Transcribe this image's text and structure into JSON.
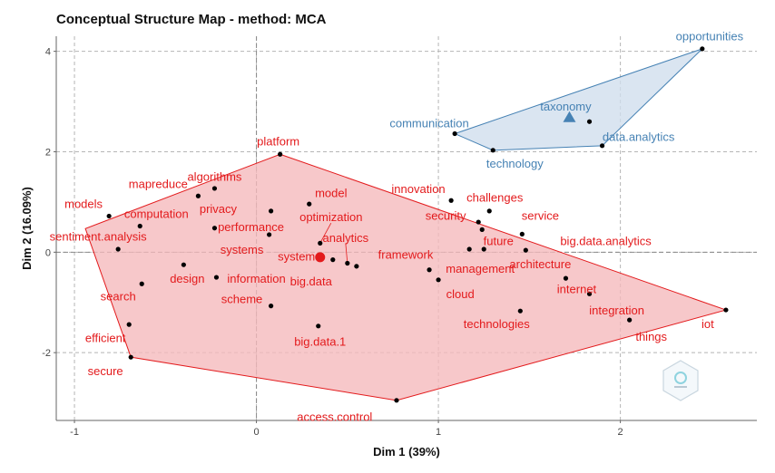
{
  "chart_data": {
    "type": "scatter",
    "title": "Conceptual Structure Map - method: MCA",
    "xlabel": "Dim 1 (39%)",
    "ylabel": "Dim 2 (16.09%)",
    "xlim": [
      -1.1,
      2.75
    ],
    "ylim": [
      -3.35,
      4.3
    ],
    "xticks": [
      -1,
      0,
      1,
      2
    ],
    "yticks": [
      -2,
      0,
      2,
      4
    ],
    "grid": true,
    "clusters": [
      {
        "color": "#e31a1c",
        "fill": "#f5b8bb",
        "hull": [
          [
            0.13,
            1.95
          ],
          [
            2.58,
            -1.15
          ],
          [
            0.77,
            -2.95
          ],
          [
            -0.69,
            -2.09
          ],
          [
            -0.94,
            0.47
          ]
        ],
        "centroid": [
          0.35,
          -0.1
        ],
        "points": [
          {
            "term": "platform",
            "x": 0.13,
            "y": 1.95
          },
          {
            "term": "algorithms",
            "x": -0.23,
            "y": 1.27
          },
          {
            "term": "mapreduce",
            "x": -0.32,
            "y": 1.12
          },
          {
            "term": "models",
            "x": -0.81,
            "y": 0.72
          },
          {
            "term": "computation",
            "x": -0.64,
            "y": 0.52
          },
          {
            "term": "privacy",
            "x": -0.23,
            "y": 0.48
          },
          {
            "term": "performance",
            "x": 0.08,
            "y": 0.82
          },
          {
            "term": "model",
            "x": 0.29,
            "y": 0.96
          },
          {
            "term": "optimization",
            "x": 0.35,
            "y": 0.18
          },
          {
            "term": "analytics",
            "x": 0.5,
            "y": -0.22
          },
          {
            "term": "systems",
            "x": 0.07,
            "y": 0.35
          },
          {
            "term": "system",
            "x": 0.42,
            "y": -0.15
          },
          {
            "term": "big.data",
            "x": 0.55,
            "y": -0.28
          },
          {
            "term": "sentiment.analysis",
            "x": -0.76,
            "y": 0.06
          },
          {
            "term": "design",
            "x": -0.4,
            "y": -0.25
          },
          {
            "term": "information",
            "x": -0.22,
            "y": -0.5
          },
          {
            "term": "scheme",
            "x": 0.08,
            "y": -1.07
          },
          {
            "term": "search",
            "x": -0.63,
            "y": -0.63
          },
          {
            "term": "efficient",
            "x": -0.7,
            "y": -1.44
          },
          {
            "term": "secure",
            "x": -0.69,
            "y": -2.09
          },
          {
            "term": "big.data.1",
            "x": 0.34,
            "y": -1.47
          },
          {
            "term": "access.control",
            "x": 0.77,
            "y": -2.95
          },
          {
            "term": "framework",
            "x": 0.95,
            "y": -0.35
          },
          {
            "term": "management",
            "x": 1.0,
            "y": -0.55
          },
          {
            "term": "innovation",
            "x": 1.07,
            "y": 1.03
          },
          {
            "term": "challenges",
            "x": 1.28,
            "y": 0.82
          },
          {
            "term": "security",
            "x": 1.22,
            "y": 0.6
          },
          {
            "term": "future",
            "x": 1.24,
            "y": 0.45
          },
          {
            "term": "cloud",
            "x": 1.17,
            "y": 0.06
          },
          {
            "term": "architecture",
            "x": 1.46,
            "y": 0.36
          },
          {
            "term": "service",
            "x": 1.48,
            "y": 0.04
          },
          {
            "term": "big.data.analytics",
            "x": 1.25,
            "y": 0.06
          },
          {
            "term": "technologies",
            "x": 1.45,
            "y": -1.17
          },
          {
            "term": "internet",
            "x": 1.7,
            "y": -0.52
          },
          {
            "term": "integration",
            "x": 1.83,
            "y": -0.83
          },
          {
            "term": "things",
            "x": 2.05,
            "y": -1.35
          },
          {
            "term": "iot",
            "x": 2.58,
            "y": -1.15
          }
        ]
      },
      {
        "color": "#4682b4",
        "fill": "#cfdeed",
        "hull": [
          [
            2.45,
            4.05
          ],
          [
            1.9,
            2.12
          ],
          [
            1.3,
            2.03
          ],
          [
            1.09,
            2.36
          ]
        ],
        "centroid": [
          1.72,
          2.68
        ],
        "points": [
          {
            "term": "opportunities",
            "x": 2.45,
            "y": 4.05
          },
          {
            "term": "taxonomy",
            "x": 1.83,
            "y": 2.6
          },
          {
            "term": "data.analytics",
            "x": 1.9,
            "y": 2.12
          },
          {
            "term": "communication",
            "x": 1.09,
            "y": 2.36
          },
          {
            "term": "technology",
            "x": 1.3,
            "y": 2.03
          }
        ]
      }
    ],
    "labels": [
      {
        "text": "platform",
        "x": 0.12,
        "y": 2.19,
        "c": 0
      },
      {
        "text": "algorithms",
        "x": -0.23,
        "y": 1.48,
        "c": 0
      },
      {
        "text": "mapreduce",
        "x": -0.54,
        "y": 1.34,
        "c": 0
      },
      {
        "text": "models",
        "x": -0.95,
        "y": 0.94,
        "c": 0
      },
      {
        "text": "computation",
        "x": -0.55,
        "y": 0.74,
        "c": 0
      },
      {
        "text": "privacy",
        "x": -0.21,
        "y": 0.84,
        "c": 0
      },
      {
        "text": "performance",
        "x": -0.03,
        "y": 0.48,
        "c": 0
      },
      {
        "text": "model",
        "x": 0.41,
        "y": 1.16,
        "c": 0
      },
      {
        "text": "optimization",
        "x": 0.41,
        "y": 0.68,
        "c": 0
      },
      {
        "text": "analytics",
        "x": 0.49,
        "y": 0.27,
        "c": 0
      },
      {
        "text": "sentiment.analysis",
        "x": -0.87,
        "y": 0.29,
        "c": 0
      },
      {
        "text": "systems",
        "x": -0.08,
        "y": 0.03,
        "c": 0
      },
      {
        "text": "system",
        "x": 0.22,
        "y": -0.1,
        "c": 0
      },
      {
        "text": "design",
        "x": -0.38,
        "y": -0.55,
        "c": 0
      },
      {
        "text": "information",
        "x": 0.0,
        "y": -0.55,
        "c": 0
      },
      {
        "text": "big.data",
        "x": 0.3,
        "y": -0.6,
        "c": 0
      },
      {
        "text": "scheme",
        "x": -0.08,
        "y": -0.95,
        "c": 0
      },
      {
        "text": "search",
        "x": -0.76,
        "y": -0.9,
        "c": 0
      },
      {
        "text": "efficient",
        "x": -0.83,
        "y": -1.73,
        "c": 0
      },
      {
        "text": "secure",
        "x": -0.83,
        "y": -2.39,
        "c": 0
      },
      {
        "text": "big.data.1",
        "x": 0.35,
        "y": -1.8,
        "c": 0
      },
      {
        "text": "access.control",
        "x": 0.43,
        "y": -3.3,
        "c": 0
      },
      {
        "text": "framework",
        "x": 0.82,
        "y": -0.07,
        "c": 0
      },
      {
        "text": "management",
        "x": 1.23,
        "y": -0.35,
        "c": 0
      },
      {
        "text": "innovation",
        "x": 0.89,
        "y": 1.24,
        "c": 0
      },
      {
        "text": "challenges",
        "x": 1.31,
        "y": 1.07,
        "c": 0
      },
      {
        "text": "security",
        "x": 1.04,
        "y": 0.71,
        "c": 0
      },
      {
        "text": "future",
        "x": 1.33,
        "y": 0.2,
        "c": 0
      },
      {
        "text": "architecture",
        "x": 1.56,
        "y": -0.26,
        "c": 0
      },
      {
        "text": "service",
        "x": 1.56,
        "y": 0.71,
        "c": 0
      },
      {
        "text": "big.data.analytics",
        "x": 1.92,
        "y": 0.2,
        "c": 0
      },
      {
        "text": "cloud",
        "x": 1.12,
        "y": -0.85,
        "c": 0
      },
      {
        "text": "internet",
        "x": 1.76,
        "y": -0.75,
        "c": 0
      },
      {
        "text": "technologies",
        "x": 1.32,
        "y": -1.45,
        "c": 0
      },
      {
        "text": "integration",
        "x": 1.98,
        "y": -1.18,
        "c": 0
      },
      {
        "text": "things",
        "x": 2.17,
        "y": -1.7,
        "c": 0
      },
      {
        "text": "iot",
        "x": 2.48,
        "y": -1.45,
        "c": 0
      },
      {
        "text": "opportunities",
        "x": 2.49,
        "y": 4.28,
        "c": 1
      },
      {
        "text": "taxonomy",
        "x": 1.7,
        "y": 2.88,
        "c": 1
      },
      {
        "text": "data.analytics",
        "x": 2.1,
        "y": 2.28,
        "c": 1
      },
      {
        "text": "communication",
        "x": 0.95,
        "y": 2.55,
        "c": 1
      },
      {
        "text": "technology",
        "x": 1.42,
        "y": 1.75,
        "c": 1
      }
    ]
  }
}
